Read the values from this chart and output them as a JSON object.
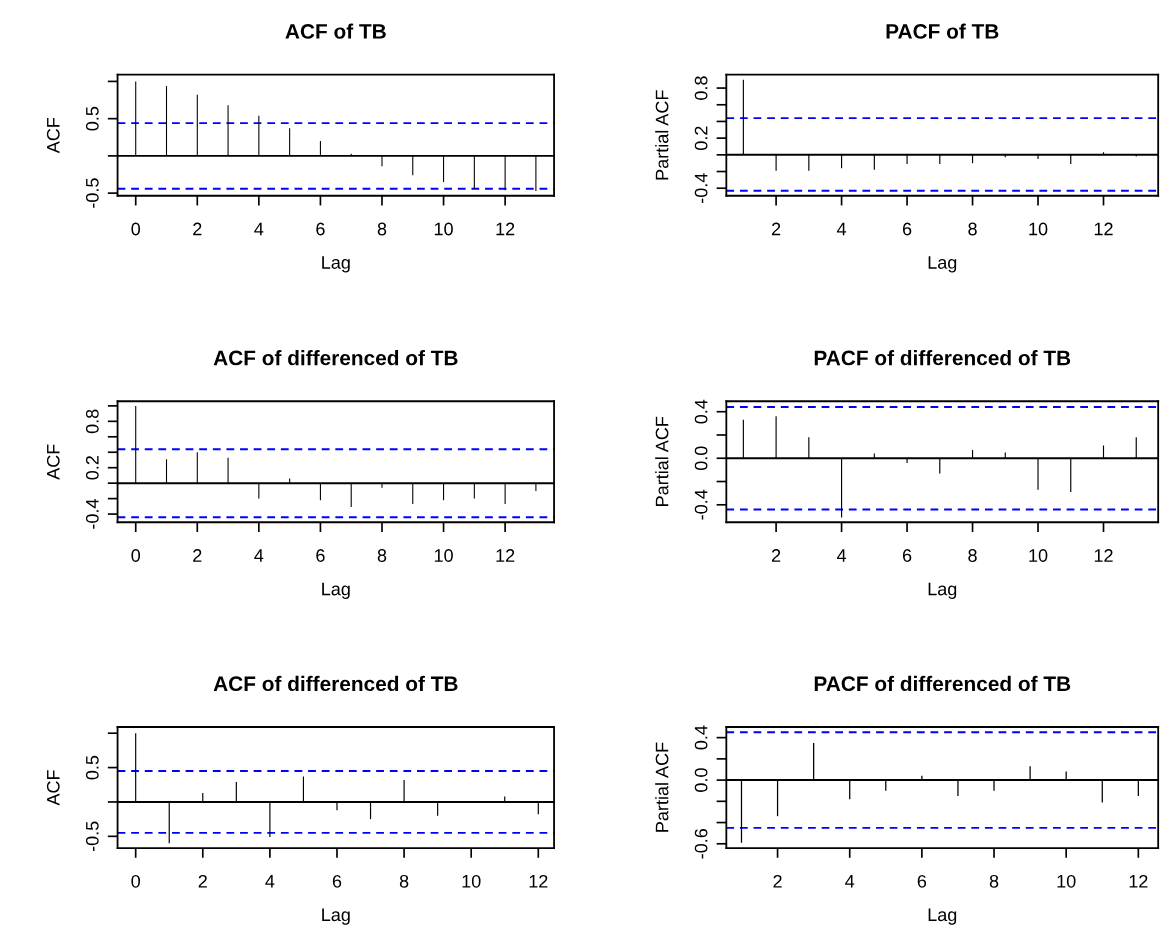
{
  "chart_data": [
    {
      "type": "bar",
      "title": "ACF of TB",
      "xlabel": "Lag",
      "ylabel": "ACF",
      "color": "#000000",
      "x": [
        0,
        1,
        2,
        3,
        4,
        5,
        6,
        7,
        8,
        9,
        10,
        11,
        12,
        13
      ],
      "values": [
        1.0,
        0.94,
        0.82,
        0.68,
        0.54,
        0.37,
        0.2,
        0.03,
        -0.14,
        -0.26,
        -0.35,
        -0.44,
        -0.46,
        -0.47
      ],
      "xlim": [
        -0.59,
        13.59
      ],
      "xticks": [
        0,
        2,
        4,
        6,
        8,
        10,
        12
      ],
      "ylim": [
        -0.535,
        1.09
      ],
      "yticks": [
        -0.5,
        {
          "value": 0.0,
          "label": null
        },
        0.5,
        {
          "value": 1.0,
          "label": null
        }
      ],
      "ref_lines": [
        {
          "axis": "y",
          "value": 0,
          "color": "#000000",
          "line_style": "solid"
        },
        {
          "axis": "y",
          "value": 0.44,
          "color": "#0000ff",
          "line_style": "dashed"
        },
        {
          "axis": "y",
          "value": -0.44,
          "color": "#0000ff",
          "line_style": "dashed"
        }
      ]
    },
    {
      "type": "bar",
      "title": "PACF of TB",
      "xlabel": "Lag",
      "ylabel": "Partial ACF",
      "color": "#000000",
      "x": [
        1,
        2,
        3,
        4,
        5,
        6,
        7,
        8,
        9,
        10,
        11,
        12,
        13
      ],
      "values": [
        0.9,
        -0.19,
        -0.19,
        -0.16,
        -0.18,
        -0.11,
        -0.11,
        -0.1,
        -0.03,
        -0.05,
        -0.11,
        0.03,
        -0.02
      ],
      "xlim": [
        0.48,
        13.67
      ],
      "xticks": [
        2,
        4,
        6,
        8,
        10,
        12
      ],
      "ylim": [
        -0.49,
        0.96
      ],
      "yticks": [
        -0.4,
        {
          "value": -0.2,
          "label": null
        },
        {
          "value": 0.0,
          "label": null
        },
        0.2,
        {
          "value": 0.4,
          "label": null
        },
        {
          "value": 0.6,
          "label": null
        },
        0.8
      ],
      "ref_lines": [
        {
          "axis": "y",
          "value": 0,
          "color": "#000000",
          "line_style": "solid"
        },
        {
          "axis": "y",
          "value": 0.44,
          "color": "#0000ff",
          "line_style": "dashed"
        },
        {
          "axis": "y",
          "value": -0.43,
          "color": "#0000ff",
          "line_style": "dashed"
        }
      ]
    },
    {
      "type": "bar",
      "title": "ACF of differenced of TB",
      "xlabel": "Lag",
      "ylabel": "ACF",
      "color": "#000000",
      "x": [
        0,
        1,
        2,
        3,
        4,
        5,
        6,
        7,
        8,
        9,
        10,
        11,
        12,
        13
      ],
      "values": [
        1.0,
        0.31,
        0.4,
        0.33,
        -0.2,
        0.06,
        -0.22,
        -0.31,
        -0.06,
        -0.27,
        -0.22,
        -0.2,
        -0.27,
        -0.1
      ],
      "xlim": [
        -0.59,
        13.59
      ],
      "xticks": [
        0,
        2,
        4,
        6,
        8,
        10,
        12
      ],
      "ylim": [
        -0.506,
        1.06
      ],
      "yticks": [
        -0.4,
        {
          "value": -0.2,
          "label": null
        },
        {
          "value": 0.0,
          "label": null
        },
        0.2,
        {
          "value": 0.4,
          "label": null
        },
        {
          "value": 0.6,
          "label": null
        },
        0.8,
        {
          "value": 1.0,
          "label": null
        }
      ],
      "ref_lines": [
        {
          "axis": "y",
          "value": 0,
          "color": "#000000",
          "line_style": "solid"
        },
        {
          "axis": "y",
          "value": 0.44,
          "color": "#0000ff",
          "line_style": "dashed"
        },
        {
          "axis": "y",
          "value": -0.44,
          "color": "#0000ff",
          "line_style": "dashed"
        }
      ]
    },
    {
      "type": "bar",
      "title": "PACF of differenced of TB",
      "xlabel": "Lag",
      "ylabel": "Partial ACF",
      "color": "#000000",
      "x": [
        1,
        2,
        3,
        4,
        5,
        6,
        7,
        8,
        9,
        10,
        11,
        12,
        13
      ],
      "values": [
        0.33,
        0.36,
        0.18,
        -0.51,
        0.04,
        -0.04,
        -0.13,
        0.07,
        0.05,
        -0.27,
        -0.29,
        0.11,
        0.18
      ],
      "xlim": [
        0.48,
        13.67
      ],
      "xticks": [
        2,
        4,
        6,
        8,
        10,
        12
      ],
      "ylim": [
        -0.55,
        0.49
      ],
      "yticks": [
        -0.4,
        {
          "value": -0.2,
          "label": null
        },
        {
          "value": 0.0,
          "label": "0.0"
        },
        {
          "value": 0.2,
          "label": null
        },
        0.4
      ],
      "ref_lines": [
        {
          "axis": "y",
          "value": 0,
          "color": "#000000",
          "line_style": "solid"
        },
        {
          "axis": "y",
          "value": 0.44,
          "color": "#0000ff",
          "line_style": "dashed"
        },
        {
          "axis": "y",
          "value": -0.44,
          "color": "#0000ff",
          "line_style": "dashed"
        }
      ]
    },
    {
      "type": "bar",
      "title": "ACF of differenced of TB",
      "xlabel": "Lag",
      "ylabel": "ACF",
      "color": "#000000",
      "x": [
        0,
        1,
        2,
        3,
        4,
        5,
        6,
        7,
        8,
        9,
        10,
        11,
        12
      ],
      "values": [
        1.0,
        -0.6,
        0.13,
        0.29,
        -0.51,
        0.37,
        -0.12,
        -0.25,
        0.32,
        -0.2,
        0.0,
        0.08,
        -0.18
      ],
      "xlim": [
        -0.54,
        12.47
      ],
      "xticks": [
        0,
        2,
        4,
        6,
        8,
        10,
        12
      ],
      "ylim": [
        -0.67,
        1.09
      ],
      "yticks": [
        -0.5,
        {
          "value": 0.0,
          "label": null
        },
        0.5,
        {
          "value": 1.0,
          "label": null
        }
      ],
      "ref_lines": [
        {
          "axis": "y",
          "value": 0,
          "color": "#000000",
          "line_style": "solid"
        },
        {
          "axis": "y",
          "value": 0.45,
          "color": "#0000ff",
          "line_style": "dashed"
        },
        {
          "axis": "y",
          "value": -0.45,
          "color": "#0000ff",
          "line_style": "dashed"
        }
      ]
    },
    {
      "type": "bar",
      "title": "PACF of differenced of TB",
      "xlabel": "Lag",
      "ylabel": "Partial ACF",
      "color": "#000000",
      "x": [
        1,
        2,
        3,
        4,
        5,
        6,
        7,
        8,
        9,
        10,
        11,
        12
      ],
      "values": [
        -0.59,
        -0.34,
        0.35,
        -0.18,
        -0.1,
        0.04,
        -0.15,
        -0.1,
        0.13,
        0.08,
        -0.21,
        -0.15
      ],
      "xlim": [
        0.58,
        12.55
      ],
      "xticks": [
        2,
        4,
        6,
        8,
        10,
        12
      ],
      "ylim": [
        -0.64,
        0.5
      ],
      "yticks": [
        -0.6,
        {
          "value": -0.4,
          "label": null
        },
        {
          "value": -0.2,
          "label": null
        },
        {
          "value": 0.0,
          "label": "0.0"
        },
        {
          "value": 0.2,
          "label": null
        },
        0.4
      ],
      "ref_lines": [
        {
          "axis": "y",
          "value": 0,
          "color": "#000000",
          "line_style": "solid"
        },
        {
          "axis": "y",
          "value": 0.45,
          "color": "#0000ff",
          "line_style": "dashed"
        },
        {
          "axis": "y",
          "value": -0.45,
          "color": "#0000ff",
          "line_style": "dashed"
        }
      ]
    }
  ]
}
